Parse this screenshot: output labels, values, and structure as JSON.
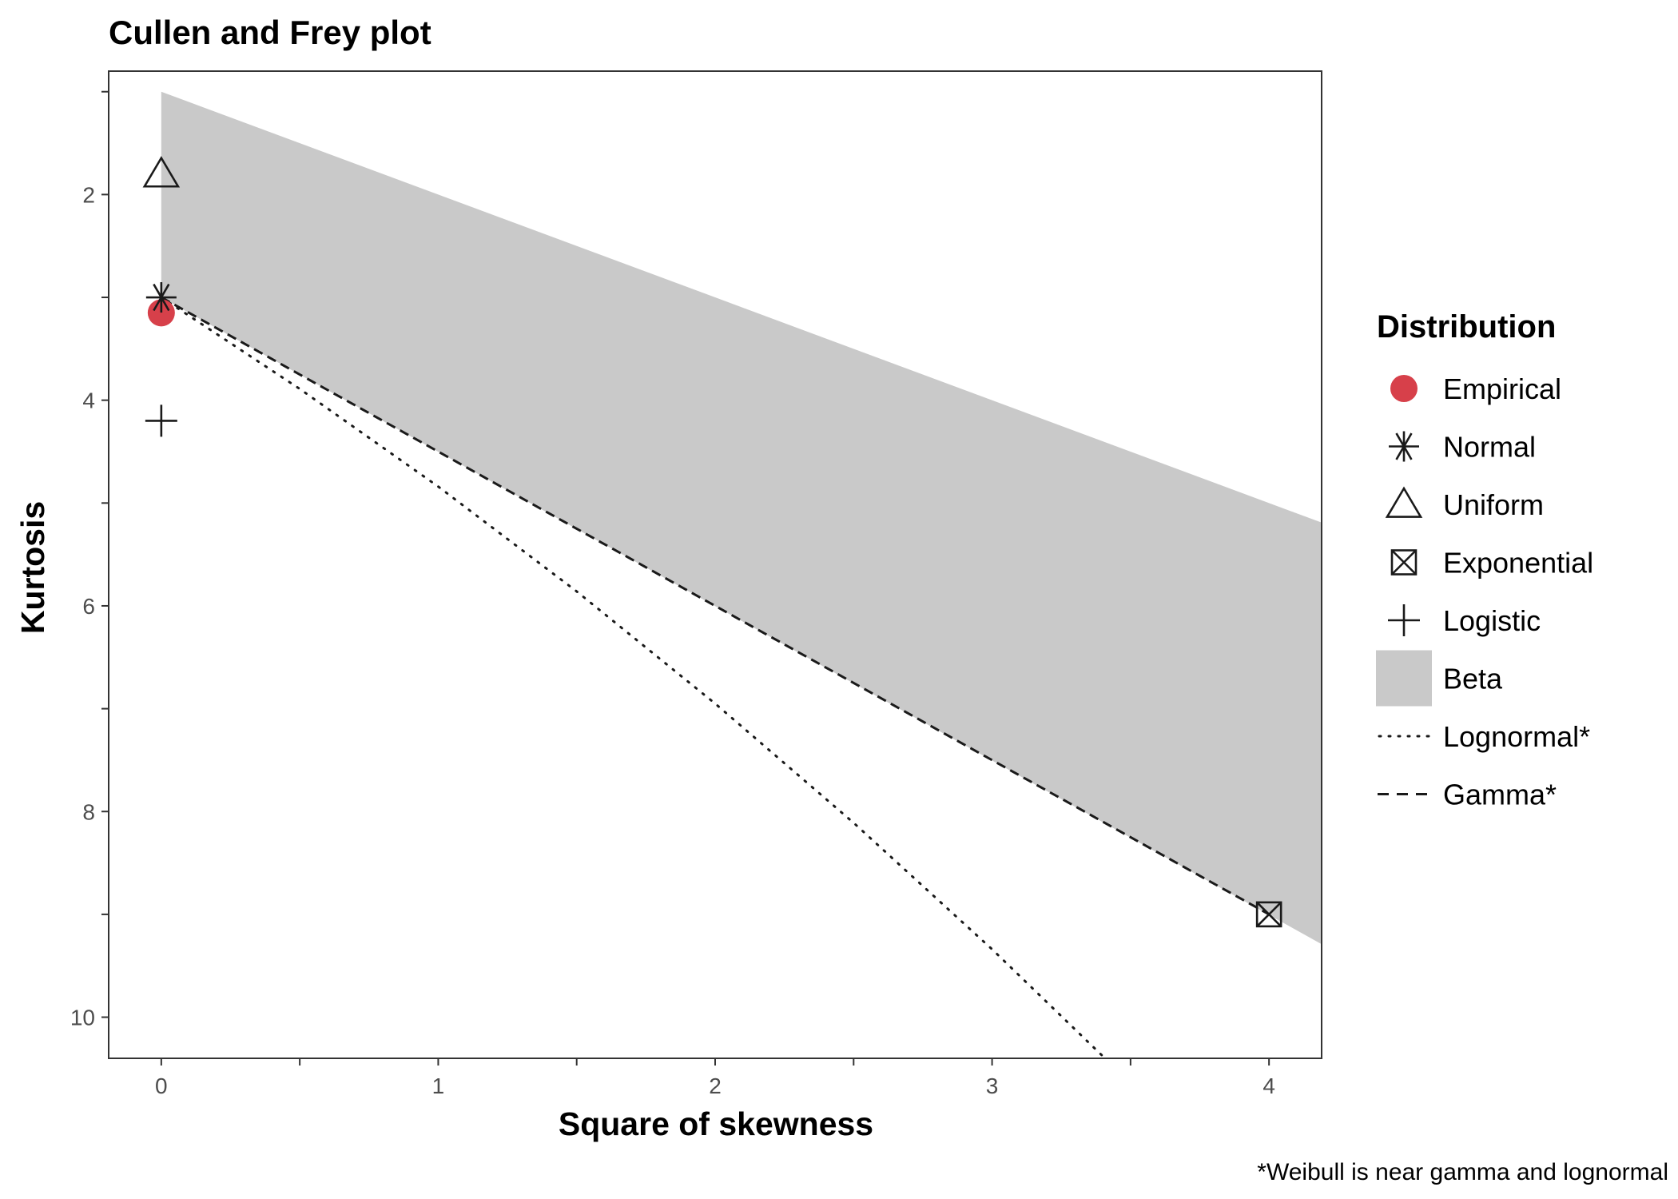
{
  "chart_data": {
    "type": "scatter",
    "title": "Cullen and Frey plot",
    "xlabel": "Square of skewness",
    "ylabel": "Kurtosis",
    "xlim": [
      -0.19,
      4.19
    ],
    "ylim": [
      0.8,
      10.4
    ],
    "y_reversed": true,
    "x_ticks": [
      0,
      1,
      2,
      3,
      4
    ],
    "y_ticks": [
      2,
      4,
      6,
      8,
      10
    ],
    "grid": false,
    "legend": {
      "title": "Distribution",
      "position": "right",
      "entries": [
        {
          "key": "empirical",
          "label": "Empirical"
        },
        {
          "key": "normal",
          "label": "Normal"
        },
        {
          "key": "uniform",
          "label": "Uniform"
        },
        {
          "key": "exponential",
          "label": "Exponential"
        },
        {
          "key": "logistic",
          "label": "Logistic"
        },
        {
          "key": "beta",
          "label": "Beta"
        },
        {
          "key": "lognormal",
          "label": "Lognormal*"
        },
        {
          "key": "gamma",
          "label": "Gamma*"
        }
      ]
    },
    "points": [
      {
        "key": "empirical",
        "x": 0,
        "y": 3.15
      },
      {
        "key": "normal",
        "x": 0,
        "y": 3.0
      },
      {
        "key": "uniform",
        "x": 0,
        "y": 1.8
      },
      {
        "key": "exponential",
        "x": 4,
        "y": 9.0
      },
      {
        "key": "logistic",
        "x": 0,
        "y": 4.2
      }
    ],
    "beta_region": {
      "upper": [
        [
          0,
          1.0
        ],
        [
          4.19,
          5.19
        ]
      ],
      "lower": [
        [
          0,
          3.0
        ],
        [
          4.19,
          9.29
        ]
      ]
    },
    "gamma_line": [
      [
        0,
        3.0
      ],
      [
        4.0,
        9.0
      ]
    ],
    "lognormal_curve": [
      [
        0,
        3.0
      ],
      [
        0.5,
        3.89
      ],
      [
        1,
        4.84
      ],
      [
        1.5,
        5.86
      ],
      [
        2,
        6.95
      ],
      [
        2.5,
        8.11
      ],
      [
        3,
        9.34
      ],
      [
        3.5,
        10.64
      ],
      [
        3.78,
        11.4
      ]
    ],
    "colors": {
      "empirical": "#d7404a",
      "beta": "#c9c9c9",
      "ink": "#1a1a1a"
    },
    "caption": "*Weibull is near gamma and lognormal"
  }
}
